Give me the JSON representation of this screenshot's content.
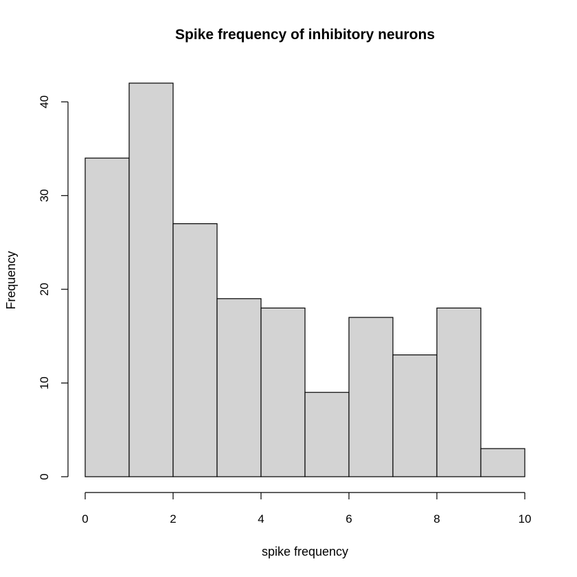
{
  "chart_data": {
    "type": "bar",
    "subtype": "histogram",
    "title": "Spike frequency of inhibitory neurons",
    "xlabel": "spike frequency",
    "ylabel": "Frequency",
    "bins": [
      {
        "start": 0,
        "end": 1,
        "count": 34
      },
      {
        "start": 1,
        "end": 2,
        "count": 42
      },
      {
        "start": 2,
        "end": 3,
        "count": 27
      },
      {
        "start": 3,
        "end": 4,
        "count": 19
      },
      {
        "start": 4,
        "end": 5,
        "count": 18
      },
      {
        "start": 5,
        "end": 6,
        "count": 9
      },
      {
        "start": 6,
        "end": 7,
        "count": 17
      },
      {
        "start": 7,
        "end": 8,
        "count": 13
      },
      {
        "start": 8,
        "end": 9,
        "count": 18
      },
      {
        "start": 9,
        "end": 10,
        "count": 3
      }
    ],
    "xlim": [
      0,
      10
    ],
    "ylim": [
      0,
      42
    ],
    "xticks": [
      0,
      2,
      4,
      6,
      8,
      10
    ],
    "yticks": [
      0,
      10,
      20,
      30,
      40
    ],
    "bar_color": "#d3d3d3",
    "edge_color": "#000000",
    "grid": false,
    "legend": "none"
  }
}
